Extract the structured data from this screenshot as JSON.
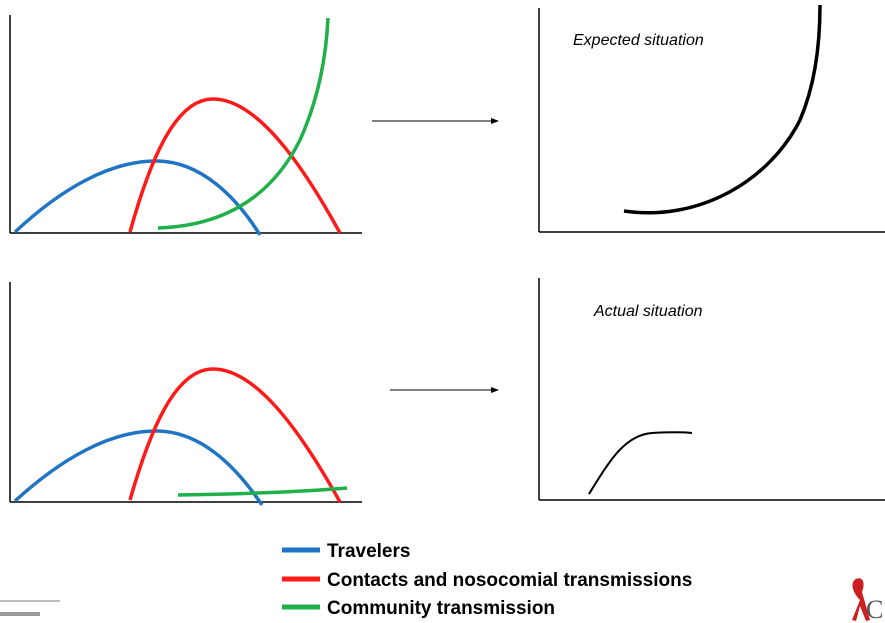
{
  "panels": {
    "expected": {
      "label": "Expected situation",
      "curve_color": "#000000"
    },
    "actual": {
      "label": "Actual situation",
      "curve_color": "#000000"
    }
  },
  "series": [
    {
      "name": "Travelers",
      "color": "#1f74c4"
    },
    {
      "name": "Contacts and nosocomial transmissions",
      "color": "#ff1a1a"
    },
    {
      "name": "Community transmission",
      "color": "#1fb04a"
    }
  ],
  "logo": {
    "letter": "C",
    "ribbon_color": "#cc1f1f"
  }
}
